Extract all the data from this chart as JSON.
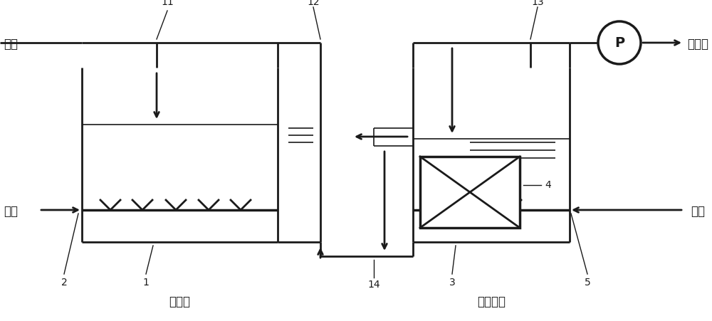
{
  "bg_color": "#ffffff",
  "line_color": "#1a1a1a",
  "fig_width": 10.0,
  "fig_height": 4.51,
  "labels": {
    "raw_water": "原水",
    "treated_water": "处理水",
    "air_left": "空气",
    "air_right": "空气",
    "aeration_tank": "曝气槽",
    "membrane_tank": "膜分离槽",
    "pump": "P",
    "num_11": "11",
    "num_12": "12",
    "num_13": "13",
    "num_1": "1",
    "num_2": "2",
    "num_3": "3",
    "num_4": "4",
    "num_5": "5",
    "num_14": "14"
  }
}
